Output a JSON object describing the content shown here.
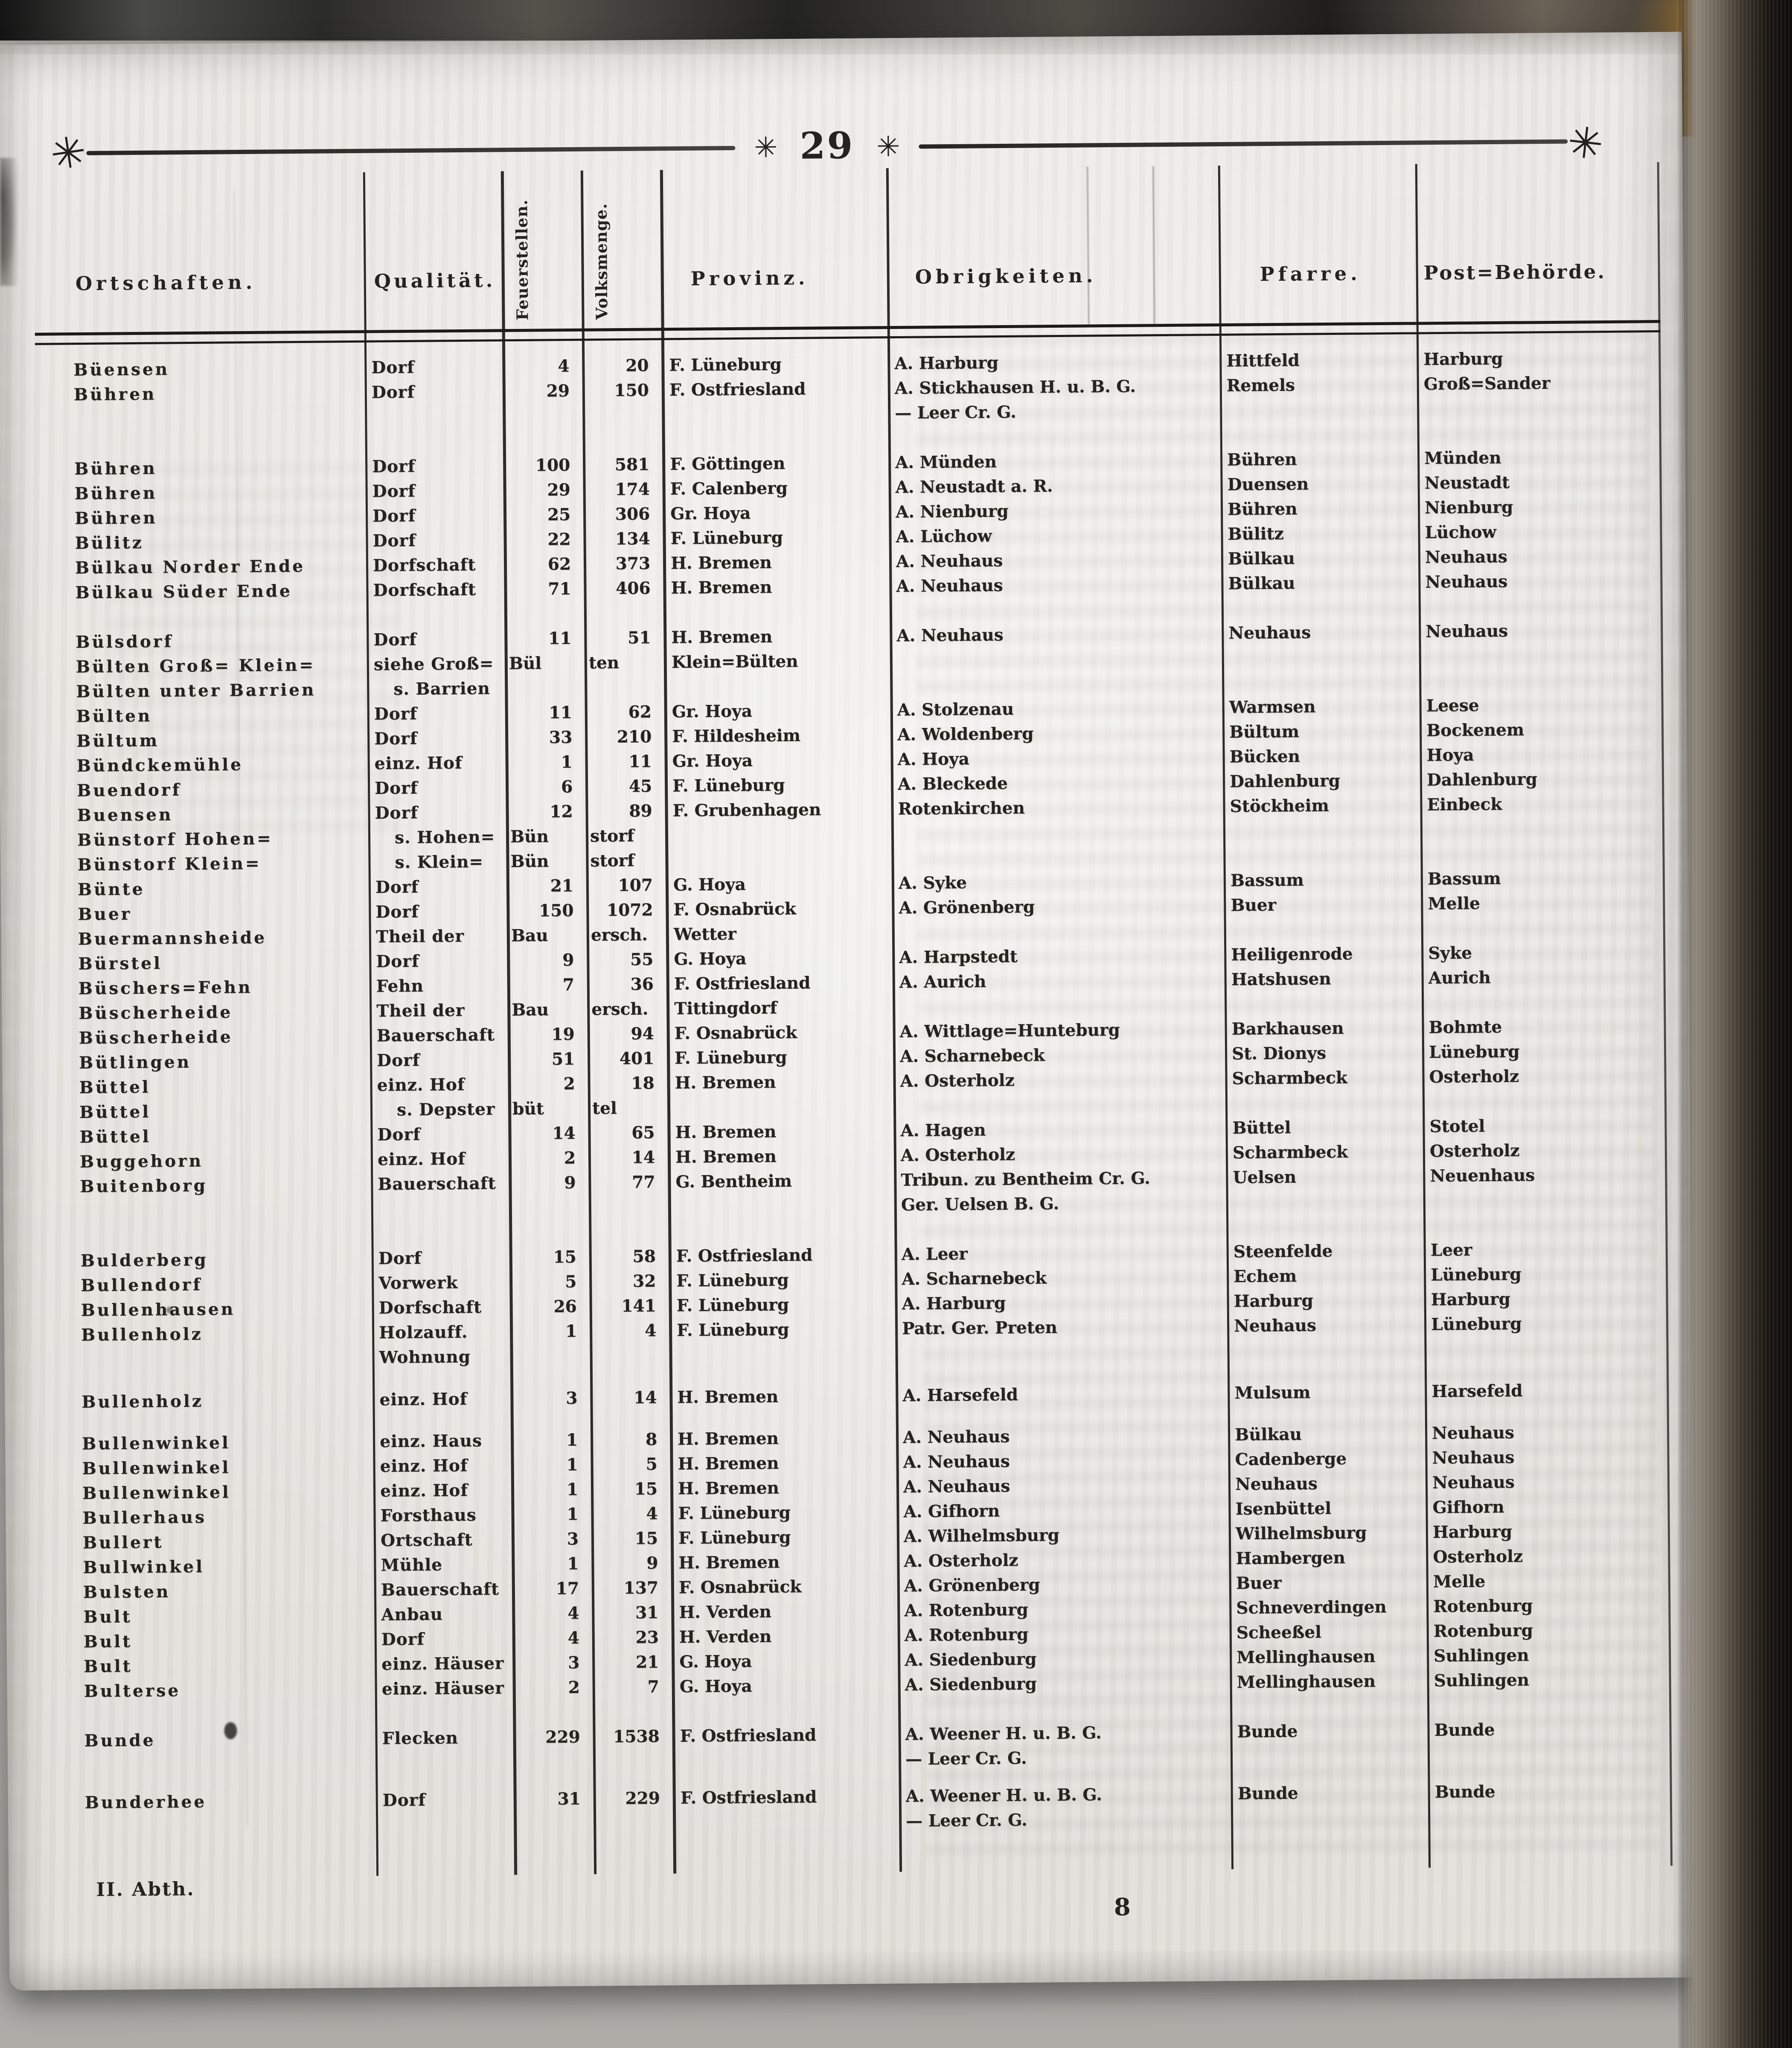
{
  "page": {
    "number": "29",
    "footer_left": "II. Abth.",
    "signature_mark": "8"
  },
  "decor": {
    "star": "✳",
    "end_ornament": "✳"
  },
  "colors": {
    "paper": "#ebe9e5",
    "ink": "#26231e"
  },
  "table": {
    "headers": [
      "Ortschaften.",
      "Qualität.",
      "Feuerstellen.",
      "Volksmenge.",
      "Provinz.",
      "Obrigkeiten.",
      "Pfarre.",
      "Post=Behörde."
    ],
    "rows": [
      {
        "ort": "Büensen",
        "qual": "Dorf",
        "feuer": "4",
        "volks": "20",
        "prov": "F. Lüneburg",
        "obrig": [
          "A. Harburg"
        ],
        "pfarre": "Hittfeld",
        "post": "Harburg"
      },
      {
        "ort": "Bühren",
        "qual": "Dorf",
        "feuer": "29",
        "volks": "150",
        "prov": "F. Ostfriesland",
        "obrig": [
          "A. Stickhausen H. u. B. G.",
          "— Leer Cr. G."
        ],
        "pfarre": "Remels",
        "post": "Groß=Sander"
      },
      {
        "gap": 1,
        "ort": "Bühren",
        "qual": "Dorf",
        "feuer": "100",
        "volks": "581",
        "prov": "F. Göttingen",
        "obrig": [
          "A. Münden"
        ],
        "pfarre": "Bühren",
        "post": "Münden"
      },
      {
        "ort": "Bühren",
        "qual": "Dorf",
        "feuer": "29",
        "volks": "174",
        "prov": "F. Calenberg",
        "obrig": [
          "A. Neustadt a. R."
        ],
        "pfarre": "Duensen",
        "post": "Neustadt"
      },
      {
        "ort": "Bühren",
        "qual": "Dorf",
        "feuer": "25",
        "volks": "306",
        "prov": "Gr. Hoya",
        "obrig": [
          "A. Nienburg"
        ],
        "pfarre": "Bühren",
        "post": "Nienburg"
      },
      {
        "ort": "Bülitz",
        "qual": "Dorf",
        "feuer": "22",
        "volks": "134",
        "prov": "F. Lüneburg",
        "obrig": [
          "A. Lüchow"
        ],
        "pfarre": "Bülitz",
        "post": "Lüchow"
      },
      {
        "ort": "Bülkau Norder Ende",
        "qual": "Dorfschaft",
        "feuer": "62",
        "volks": "373",
        "prov": "H. Bremen",
        "obrig": [
          "A. Neuhaus"
        ],
        "pfarre": "Bülkau",
        "post": "Neuhaus"
      },
      {
        "ort": "Bülkau Süder Ende",
        "qual": "Dorfschaft",
        "feuer": "71",
        "volks": "406",
        "prov": "H. Bremen",
        "obrig": [
          "A. Neuhaus"
        ],
        "pfarre": "Bülkau",
        "post": "Neuhaus"
      },
      {
        "gap": 1,
        "ort": "Bülsdorf",
        "qual": "Dorf",
        "feuer": "11",
        "volks": "51",
        "prov": "H. Bremen",
        "obrig": [
          "A. Neuhaus"
        ],
        "pfarre": "Neuhaus",
        "post": "Neuhaus"
      },
      {
        "ort": "Bülten Groß= Klein=",
        "qual": "siehe Groß=",
        "feuer": "Bül",
        "volks": "ten",
        "prov": "Klein=Bülten",
        "obrig": [],
        "pfarre": "",
        "post": ""
      },
      {
        "ort": "Bülten unter Barrien",
        "qual": "s. Barrien",
        "feuer": "",
        "volks": "",
        "prov": "",
        "obrig": [],
        "pfarre": "",
        "post": ""
      },
      {
        "ort": "Bülten",
        "qual": "Dorf",
        "feuer": "11",
        "volks": "62",
        "prov": "Gr. Hoya",
        "obrig": [
          "A. Stolzenau"
        ],
        "pfarre": "Warmsen",
        "post": "Leese"
      },
      {
        "ort": "Bültum",
        "qual": "Dorf",
        "feuer": "33",
        "volks": "210",
        "prov": "F. Hildesheim",
        "obrig": [
          "A. Woldenberg"
        ],
        "pfarre": "Bültum",
        "post": "Bockenem"
      },
      {
        "ort": "Bündckemühle",
        "qual": "einz. Hof",
        "feuer": "1",
        "volks": "11",
        "prov": "Gr. Hoya",
        "obrig": [
          "A. Hoya"
        ],
        "pfarre": "Bücken",
        "post": "Hoya"
      },
      {
        "ort": "Buendorf",
        "qual": "Dorf",
        "feuer": "6",
        "volks": "45",
        "prov": "F. Lüneburg",
        "obrig": [
          "A. Bleckede"
        ],
        "pfarre": "Dahlenburg",
        "post": "Dahlenburg"
      },
      {
        "ort": "Buensen",
        "qual": "Dorf",
        "feuer": "12",
        "volks": "89",
        "prov": "F. Grubenhagen",
        "obrig": [
          "Rotenkirchen"
        ],
        "pfarre": "Stöckheim",
        "post": "Einbeck"
      },
      {
        "ort": "Bünstorf Hohen=",
        "qual": "s. Hohen=",
        "feuer": "Bün",
        "volks": "storf",
        "prov": "",
        "obrig": [],
        "pfarre": "",
        "post": ""
      },
      {
        "ort": "Bünstorf Klein=",
        "qual": "s. Klein=",
        "feuer": "Bün",
        "volks": "storf",
        "prov": "",
        "obrig": [],
        "pfarre": "",
        "post": ""
      },
      {
        "ort": "Bünte",
        "qual": "Dorf",
        "feuer": "21",
        "volks": "107",
        "prov": "G. Hoya",
        "obrig": [
          "A. Syke"
        ],
        "pfarre": "Bassum",
        "post": "Bassum"
      },
      {
        "ort": "Buer",
        "qual": "Dorf",
        "feuer": "150",
        "volks": "1072",
        "prov": "F. Osnabrück",
        "obrig": [
          "A. Grönenberg"
        ],
        "pfarre": "Buer",
        "post": "Melle"
      },
      {
        "ort": "Buermannsheide",
        "qual": "Theil der",
        "feuer": "Bau",
        "volks": "ersch.",
        "prov": "Wetter",
        "obrig": [],
        "pfarre": "",
        "post": ""
      },
      {
        "ort": "Bürstel",
        "qual": "Dorf",
        "feuer": "9",
        "volks": "55",
        "prov": "G. Hoya",
        "obrig": [
          "A. Harpstedt"
        ],
        "pfarre": "Heiligenrode",
        "post": "Syke"
      },
      {
        "ort": "Büschers=Fehn",
        "qual": "Fehn",
        "feuer": "7",
        "volks": "36",
        "prov": "F. Ostfriesland",
        "obrig": [
          "A. Aurich"
        ],
        "pfarre": "Hatshusen",
        "post": "Aurich"
      },
      {
        "ort": "Büscherheide",
        "qual": "Theil der",
        "feuer": "Bau",
        "volks": "ersch.",
        "prov": "Tittingdorf",
        "obrig": [],
        "pfarre": "",
        "post": ""
      },
      {
        "ort": "Büscherheide",
        "qual": "Bauerschaft",
        "feuer": "19",
        "volks": "94",
        "prov": "F. Osnabrück",
        "obrig": [
          "A. Wittlage=Hunteburg"
        ],
        "pfarre": "Barkhausen",
        "post": "Bohmte"
      },
      {
        "ort": "Bütlingen",
        "qual": "Dorf",
        "feuer": "51",
        "volks": "401",
        "prov": "F. Lüneburg",
        "obrig": [
          "A. Scharnebeck"
        ],
        "pfarre": "St. Dionys",
        "post": "Lüneburg"
      },
      {
        "ort": "Büttel",
        "qual": "einz. Hof",
        "feuer": "2",
        "volks": "18",
        "prov": "H. Bremen",
        "obrig": [
          "A. Osterholz"
        ],
        "pfarre": "Scharmbeck",
        "post": "Osterholz"
      },
      {
        "ort": "Büttel",
        "qual": "s. Depster",
        "feuer": "büt",
        "volks": "tel",
        "prov": "",
        "obrig": [],
        "pfarre": "",
        "post": ""
      },
      {
        "ort": "Büttel",
        "qual": "Dorf",
        "feuer": "14",
        "volks": "65",
        "prov": "H. Bremen",
        "obrig": [
          "A. Hagen"
        ],
        "pfarre": "Büttel",
        "post": "Stotel"
      },
      {
        "ort": "Buggehorn",
        "qual": "einz. Hof",
        "feuer": "2",
        "volks": "14",
        "prov": "H. Bremen",
        "obrig": [
          "A. Osterholz"
        ],
        "pfarre": "Scharmbeck",
        "post": "Osterholz"
      },
      {
        "ort": "Buitenborg",
        "qual": "Bauerschaft",
        "feuer": "9",
        "volks": "77",
        "prov": "G. Bentheim",
        "obrig": [
          "Tribun. zu Bentheim Cr. G.",
          "Ger. Uelsen B. G."
        ],
        "pfarre": "Uelsen",
        "post": "Neuenhaus"
      },
      {
        "gap": 1,
        "ort": "Bulderberg",
        "qual": "Dorf",
        "feuer": "15",
        "volks": "58",
        "prov": "F. Ostfriesland",
        "obrig": [
          "A. Leer"
        ],
        "pfarre": "Steenfelde",
        "post": "Leer"
      },
      {
        "ort": "Bullendorf",
        "qual": "Vorwerk",
        "feuer": "5",
        "volks": "32",
        "prov": "F. Lüneburg",
        "obrig": [
          "A. Scharnebeck"
        ],
        "pfarre": "Echem",
        "post": "Lüneburg"
      },
      {
        "ort": "Bullenhausen",
        "qual": "Dorfschaft",
        "feuer": "26",
        "volks": "141",
        "prov": "F. Lüneburg",
        "obrig": [
          "A. Harburg"
        ],
        "pfarre": "Harburg",
        "post": "Harburg"
      },
      {
        "ort": "Bullenholz",
        "qual": [
          "Holzauff.",
          "Wohnung"
        ],
        "feuer": "1",
        "volks": "4",
        "prov": "F. Lüneburg",
        "obrig": [
          "Patr. Ger. Preten"
        ],
        "pfarre": "Neuhaus",
        "post": "Lüneburg"
      },
      {
        "gap": 0.7,
        "ort": "Bullenholz",
        "qual": "einz. Hof",
        "feuer": "3",
        "volks": "14",
        "prov": "H. Bremen",
        "obrig": [
          "A. Harsefeld"
        ],
        "pfarre": "Mulsum",
        "post": "Harsefeld"
      },
      {
        "gap": 0.7,
        "ort": "Bullenwinkel",
        "qual": "einz. Haus",
        "feuer": "1",
        "volks": "8",
        "prov": "H. Bremen",
        "obrig": [
          "A. Neuhaus"
        ],
        "pfarre": "Bülkau",
        "post": "Neuhaus"
      },
      {
        "ort": "Bullenwinkel",
        "qual": "einz. Hof",
        "feuer": "1",
        "volks": "5",
        "prov": "H. Bremen",
        "obrig": [
          "A. Neuhaus"
        ],
        "pfarre": "Cadenberge",
        "post": "Neuhaus"
      },
      {
        "ort": "Bullenwinkel",
        "qual": "einz. Hof",
        "feuer": "1",
        "volks": "15",
        "prov": "H. Bremen",
        "obrig": [
          "A. Neuhaus"
        ],
        "pfarre": "Neuhaus",
        "post": "Neuhaus"
      },
      {
        "ort": "Bullerhaus",
        "qual": "Forsthaus",
        "feuer": "1",
        "volks": "4",
        "prov": "F. Lüneburg",
        "obrig": [
          "A. Gifhorn"
        ],
        "pfarre": "Isenbüttel",
        "post": "Gifhorn"
      },
      {
        "ort": "Bullert",
        "qual": "Ortschaft",
        "feuer": "3",
        "volks": "15",
        "prov": "F. Lüneburg",
        "obrig": [
          "A. Wilhelmsburg"
        ],
        "pfarre": "Wilhelmsburg",
        "post": "Harburg"
      },
      {
        "ort": "Bullwinkel",
        "qual": "Mühle",
        "feuer": "1",
        "volks": "9",
        "prov": "H. Bremen",
        "obrig": [
          "A. Osterholz"
        ],
        "pfarre": "Hambergen",
        "post": "Osterholz"
      },
      {
        "ort": "Bulsten",
        "qual": "Bauerschaft",
        "feuer": "17",
        "volks": "137",
        "prov": "F. Osnabrück",
        "obrig": [
          "A. Grönenberg"
        ],
        "pfarre": "Buer",
        "post": "Melle"
      },
      {
        "ort": "Bult",
        "qual": "Anbau",
        "feuer": "4",
        "volks": "31",
        "prov": "H. Verden",
        "obrig": [
          "A. Rotenburg"
        ],
        "pfarre": "Schneverdingen",
        "post": "Rotenburg"
      },
      {
        "ort": "Bult",
        "qual": "Dorf",
        "feuer": "4",
        "volks": "23",
        "prov": "H. Verden",
        "obrig": [
          "A. Rotenburg"
        ],
        "pfarre": "Scheeßel",
        "post": "Rotenburg"
      },
      {
        "ort": "Bult",
        "qual": "einz. Häuser",
        "feuer": "3",
        "volks": "21",
        "prov": "G. Hoya",
        "obrig": [
          "A. Siedenburg"
        ],
        "pfarre": "Mellinghausen",
        "post": "Suhlingen"
      },
      {
        "ort": "Bulterse",
        "qual": "einz. Häuser",
        "feuer": "2",
        "volks": "7",
        "prov": "G. Hoya",
        "obrig": [
          "A. Siedenburg"
        ],
        "pfarre": "Mellinghausen",
        "post": "Suhlingen"
      },
      {
        "gap": 1,
        "ort": "Bunde",
        "qual": "Flecken",
        "feuer": "229",
        "volks": "1538",
        "prov": "F. Ostfriesland",
        "obrig": [
          "A. Weener H. u. B. G.",
          "— Leer Cr. G."
        ],
        "pfarre": "Bunde",
        "post": "Bunde"
      },
      {
        "gap": 0.5,
        "ort": "Bunderhee",
        "qual": "Dorf",
        "feuer": "31",
        "volks": "229",
        "prov": "F. Ostfriesland",
        "obrig": [
          "A. Weener H. u. B. G.",
          "— Leer Cr. G."
        ],
        "pfarre": "Bunde",
        "post": "Bunde"
      }
    ]
  }
}
